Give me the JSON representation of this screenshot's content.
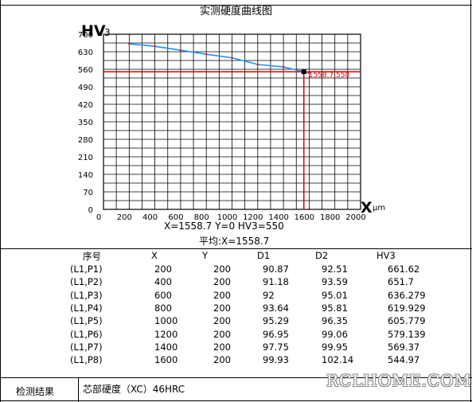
{
  "title": "实测硬度曲线图",
  "chart_data": {
    "type": "line",
    "y_unit_label": "HV",
    "y_unit_sub": "3",
    "x_unit_symbol": "X",
    "x_unit_label": "μm",
    "xlim": [
      0,
      2000
    ],
    "ylim": [
      0,
      700
    ],
    "x_ticks": [
      "0",
      "200",
      "400",
      "600",
      "800",
      "1000",
      "1200",
      "1400",
      "1600",
      "1800",
      "2000"
    ],
    "y_ticks": [
      "0",
      "70",
      "140",
      "210",
      "280",
      "350",
      "420",
      "490",
      "560",
      "630",
      "700"
    ],
    "grid": true,
    "series": [
      {
        "color": "#1e90ff",
        "x": [
          200,
          400,
          600,
          800,
          1000,
          1200,
          1400,
          1600
        ],
        "y": [
          661.62,
          651.7,
          636.279,
          619.929,
          605.779,
          579.139,
          569.37,
          544.97
        ]
      }
    ],
    "marker": {
      "x": 1558.7,
      "y": 550,
      "label": "1558.7,550",
      "color": "#e00000"
    }
  },
  "summary": {
    "line1": "X=1558.7    Y=0   HV3=550",
    "line2": "平均:X=1558.7"
  },
  "table": {
    "headers": [
      "序号",
      "X",
      "Y",
      "D1",
      "D2",
      "HV3"
    ],
    "rows": [
      [
        "(L1,P1)",
        "200",
        "200",
        "90.87",
        "92.51",
        "661.62"
      ],
      [
        "(L1,P2)",
        "400",
        "200",
        "91.18",
        "93.59",
        "651.7"
      ],
      [
        "(L1,P3)",
        "600",
        "200",
        "92",
        "95.01",
        "636.279"
      ],
      [
        "(L1,P4)",
        "800",
        "200",
        "93.64",
        "95.81",
        "619.929"
      ],
      [
        "(L1,P5)",
        "1000",
        "200",
        "95.29",
        "96.35",
        "605.779"
      ],
      [
        "(L1,P6)",
        "1200",
        "200",
        "96.95",
        "99.06",
        "579.139"
      ],
      [
        "(L1,P7)",
        "1400",
        "200",
        "97.75",
        "99.95",
        "569.37"
      ],
      [
        "(L1,P8)",
        "1600",
        "200",
        "99.93",
        "102.14",
        "544.97"
      ]
    ]
  },
  "footer": {
    "label": "检测结果",
    "value": "芯部硬度（XC）46HRC"
  },
  "watermark": "RCLHOME.COM"
}
